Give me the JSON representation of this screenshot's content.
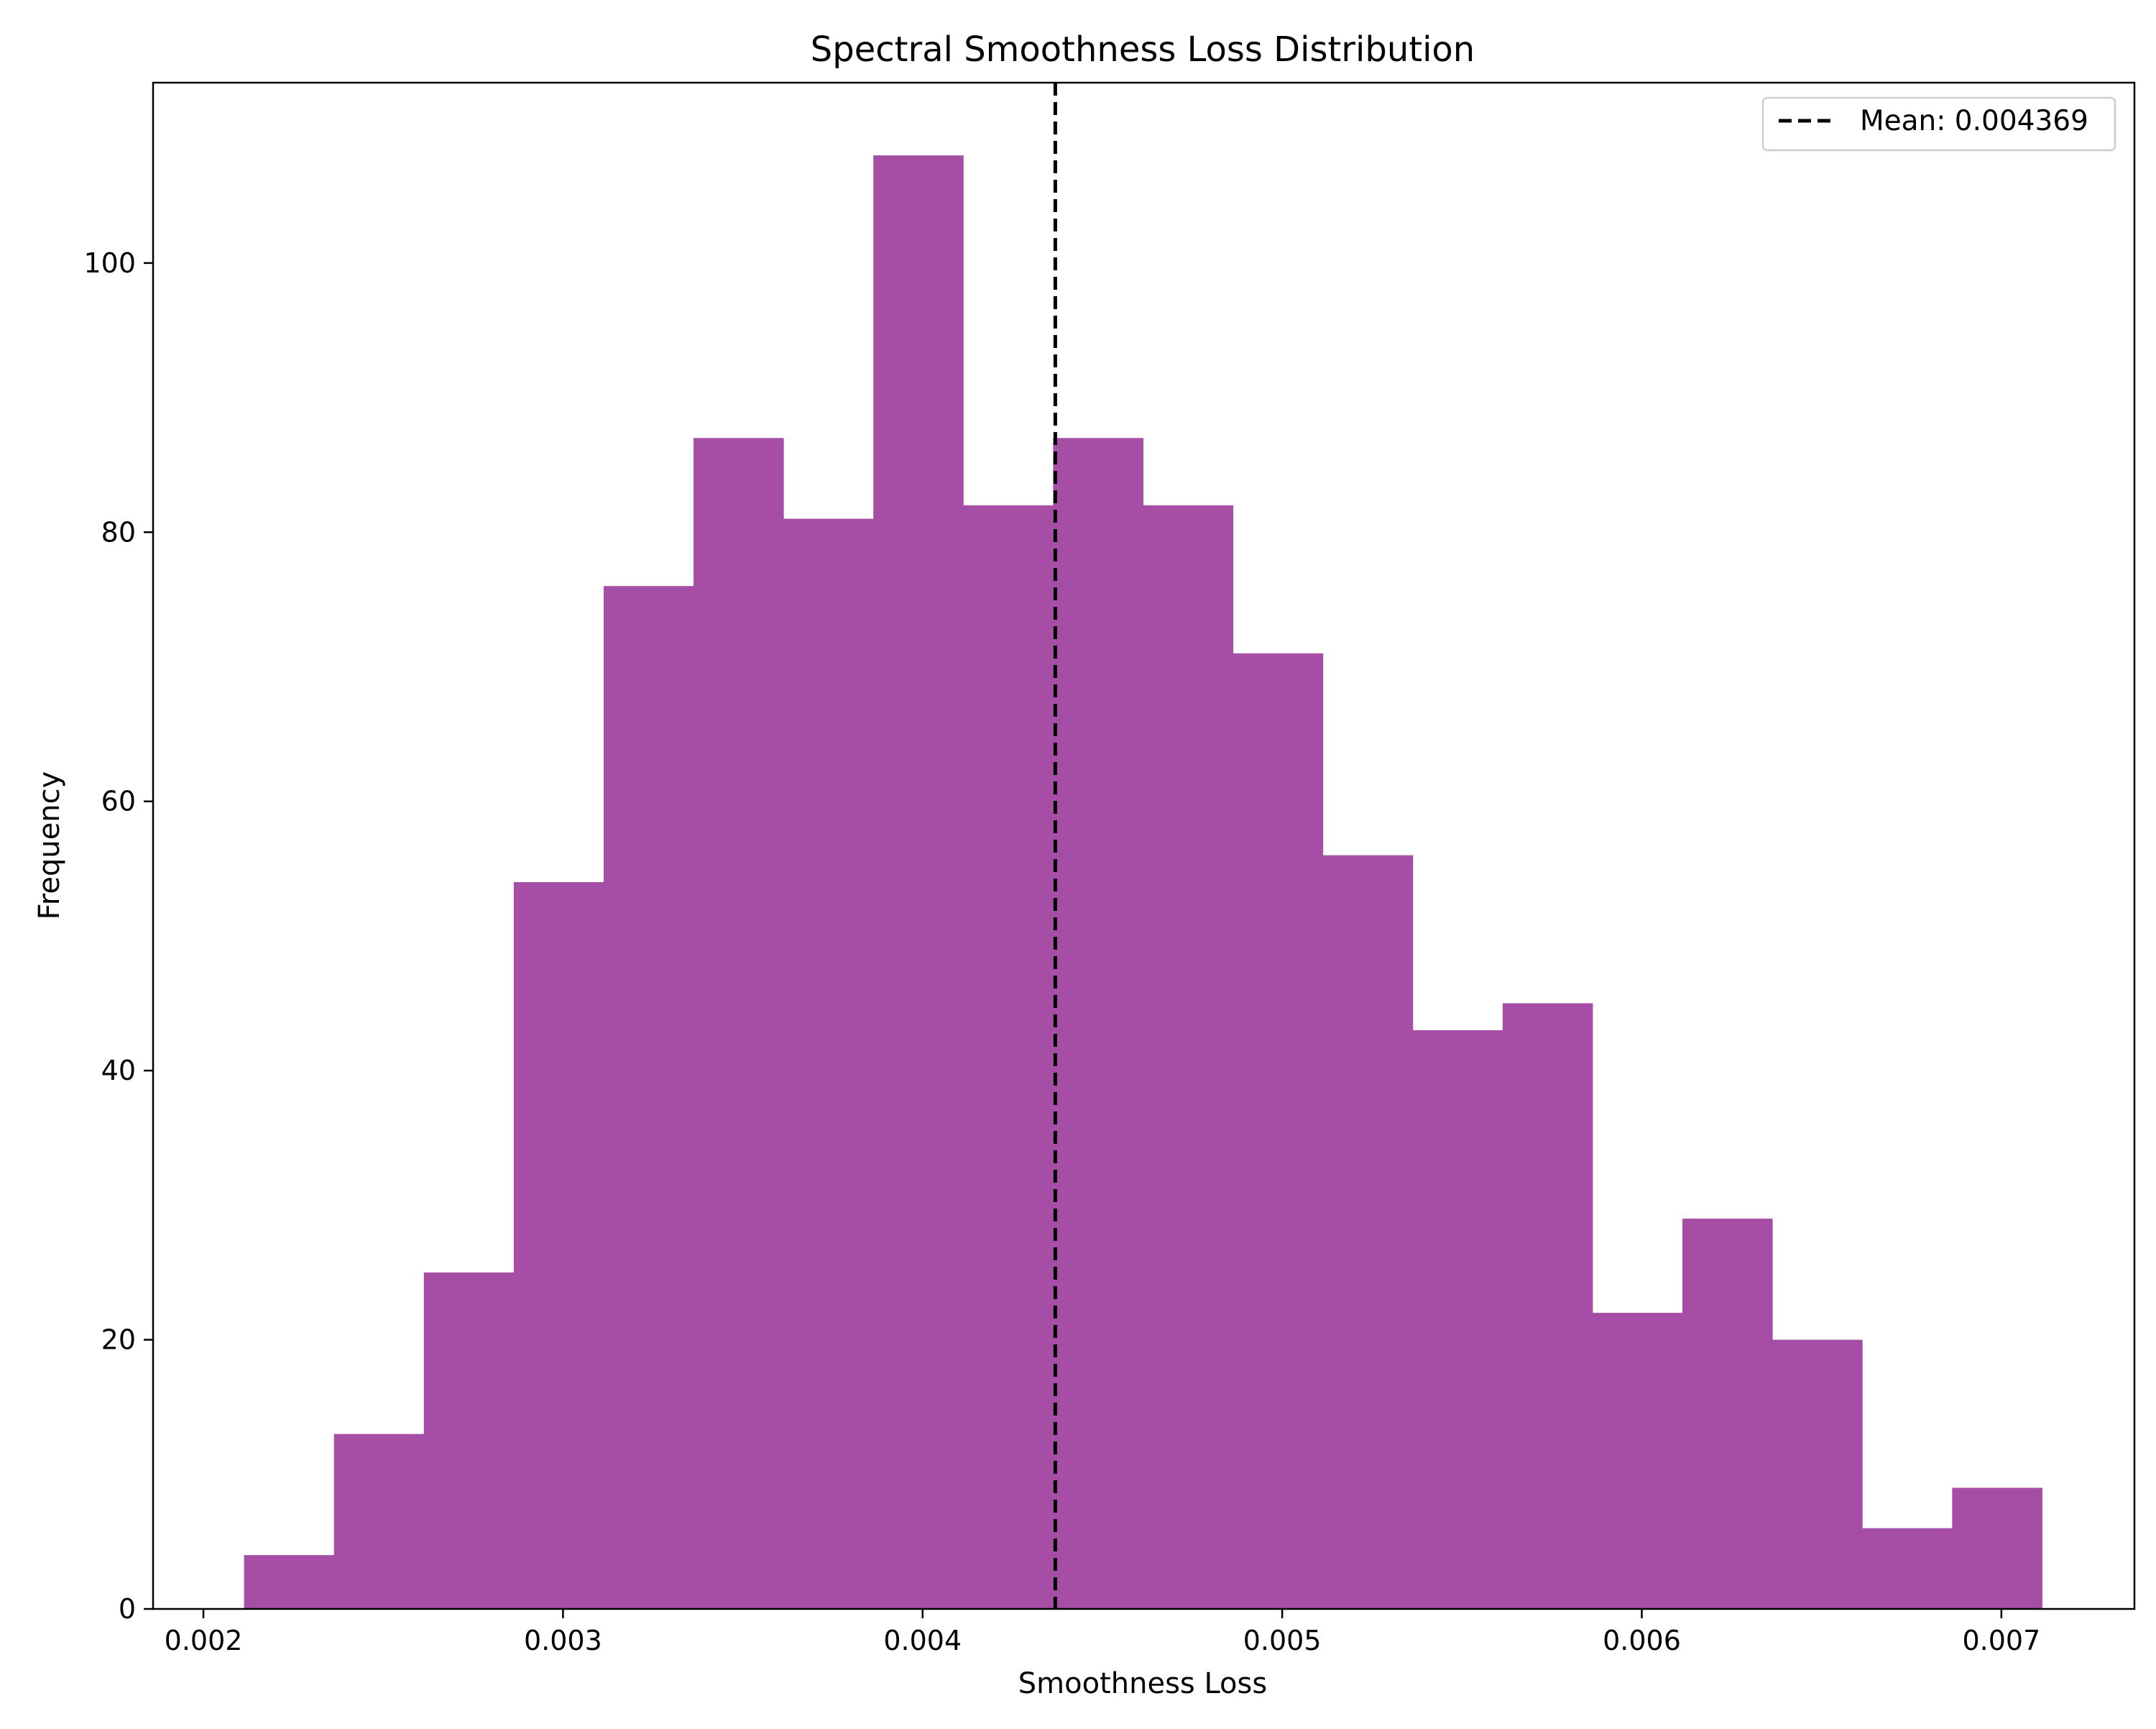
{
  "chart_data": {
    "type": "bar",
    "title": "Spectral Smoothness Loss Distribution",
    "xlabel": "Smoothness Loss",
    "ylabel": "Frequency",
    "xlim": [
      0.00186,
      0.00737
    ],
    "ylim": [
      0,
      113.4
    ],
    "xticks": [
      0.002,
      0.003,
      0.004,
      0.005,
      0.006,
      0.007
    ],
    "xtick_labels": [
      "0.002",
      "0.003",
      "0.004",
      "0.005",
      "0.006",
      "0.007"
    ],
    "yticks": [
      0,
      20,
      40,
      60,
      80,
      100
    ],
    "ytick_labels": [
      "0",
      "20",
      "40",
      "60",
      "80",
      "100"
    ],
    "bins": {
      "start": 0.002113,
      "width": 0.00025,
      "counts": [
        4,
        13,
        25,
        54,
        76,
        87,
        81,
        108,
        82,
        87,
        82,
        71,
        56,
        43,
        45,
        22,
        29,
        20,
        6,
        9
      ]
    },
    "bar_color": "#a64ea6",
    "mean": {
      "value": 0.004369,
      "line_color": "#000000",
      "line_style": "dashed"
    },
    "legend": {
      "label": "Mean: 0.004369",
      "position": "upper right"
    },
    "grid": false
  }
}
